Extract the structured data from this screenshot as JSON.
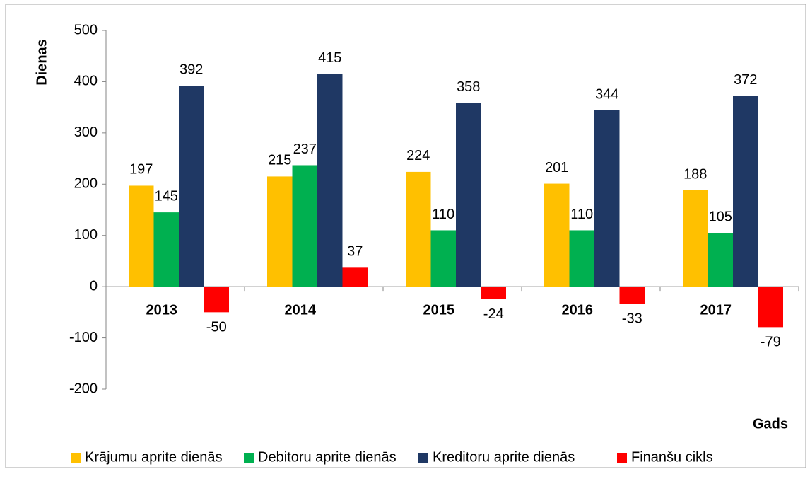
{
  "chart_data": {
    "type": "bar",
    "y_label": "Dienas",
    "x_label": "Gads",
    "categories": [
      "2013",
      "2014",
      "2015",
      "2016",
      "2017"
    ],
    "series": [
      {
        "name": "Krājumu aprite dienās",
        "color": "#ffc000",
        "values": [
          197,
          215,
          224,
          201,
          188
        ]
      },
      {
        "name": "Debitoru aprite dienās",
        "color": "#00b050",
        "values": [
          145,
          237,
          110,
          110,
          105
        ]
      },
      {
        "name": "Kreditoru aprite dienās",
        "color": "#1f3864",
        "values": [
          392,
          415,
          358,
          344,
          372
        ]
      },
      {
        "name": "Finanšu cikls",
        "color": "#ff0000",
        "values": [
          -50,
          37,
          -24,
          -33,
          -79
        ]
      }
    ],
    "ylim": [
      -200,
      500
    ],
    "yticks": [
      -200,
      -100,
      0,
      100,
      200,
      300,
      400,
      500
    ],
    "legend": "bottom"
  }
}
